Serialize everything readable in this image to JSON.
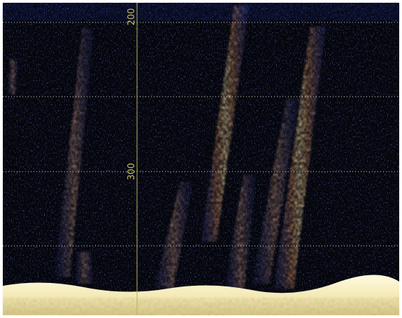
{
  "depth_labels": [
    "200",
    "300"
  ]
}
